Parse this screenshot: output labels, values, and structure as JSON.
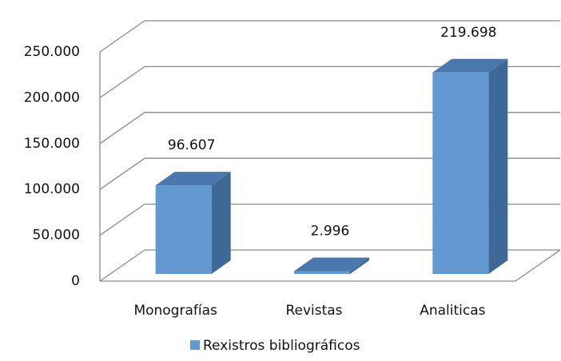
{
  "chart_data": {
    "type": "bar3d",
    "categories": [
      "Monografías",
      "Revistas",
      "Analiticas"
    ],
    "series": [
      {
        "name": "Rexistros bibliográficos",
        "color": "#6399d1",
        "values": [
          96607,
          2996,
          219698
        ],
        "value_labels": [
          "96.607",
          "2.996",
          "219.698"
        ]
      }
    ],
    "ylim": [
      0,
      250000
    ],
    "yticks": [
      0,
      {
        "value": 50000,
        "label": "50.000"
      },
      {
        "value": 100000,
        "label": "100.000"
      },
      {
        "value": 150000,
        "label": "150.000"
      },
      {
        "value": 200000,
        "label": "200.000"
      },
      {
        "value": 250000,
        "label": "250.000"
      }
    ],
    "grid": true,
    "legend": "bottom"
  }
}
